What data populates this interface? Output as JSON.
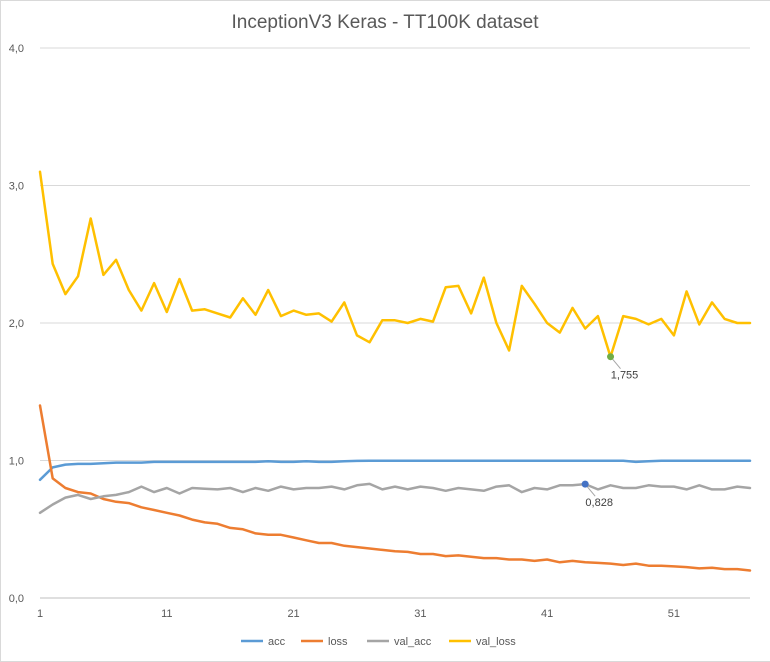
{
  "chart_data": {
    "type": "line",
    "title": "InceptionV3 Keras - TT100K dataset",
    "xlabel": "",
    "ylabel": "",
    "ylim": [
      0,
      4
    ],
    "yticks": [
      "0,0",
      "1,0",
      "2,0",
      "3,0",
      "4,0"
    ],
    "yticks_values": [
      0,
      1,
      2,
      3,
      4
    ],
    "xticks": [
      "1",
      "11",
      "21",
      "31",
      "41",
      "51"
    ],
    "xticks_values": [
      1,
      11,
      21,
      31,
      41,
      51
    ],
    "x": [
      1,
      2,
      3,
      4,
      5,
      6,
      7,
      8,
      9,
      10,
      11,
      12,
      13,
      14,
      15,
      16,
      17,
      18,
      19,
      20,
      21,
      22,
      23,
      24,
      25,
      26,
      27,
      28,
      29,
      30,
      31,
      32,
      33,
      34,
      35,
      36,
      37,
      38,
      39,
      40,
      41,
      42,
      43,
      44,
      45,
      46,
      47,
      48,
      49,
      50,
      51,
      52,
      53,
      54,
      55,
      56,
      57
    ],
    "grid": "horizontal",
    "legend": "bottom",
    "series": [
      {
        "name": "acc",
        "color": "#5b9bd5",
        "values": [
          0.86,
          0.95,
          0.97,
          0.975,
          0.975,
          0.98,
          0.985,
          0.985,
          0.985,
          0.99,
          0.99,
          0.99,
          0.99,
          0.99,
          0.99,
          0.99,
          0.99,
          0.99,
          0.995,
          0.99,
          0.99,
          0.995,
          0.99,
          0.99,
          0.995,
          0.997,
          0.998,
          0.998,
          0.998,
          0.998,
          0.998,
          0.998,
          0.998,
          0.998,
          0.998,
          0.998,
          0.998,
          0.998,
          0.998,
          0.998,
          0.998,
          0.998,
          0.998,
          0.998,
          0.998,
          0.998,
          0.998,
          0.99,
          0.995,
          0.998,
          0.998,
          0.998,
          0.998,
          0.998,
          0.998,
          0.998,
          0.998
        ]
      },
      {
        "name": "loss",
        "color": "#ed7d31",
        "values": [
          1.4,
          0.87,
          0.8,
          0.77,
          0.76,
          0.72,
          0.7,
          0.69,
          0.66,
          0.64,
          0.62,
          0.6,
          0.57,
          0.55,
          0.54,
          0.51,
          0.5,
          0.47,
          0.46,
          0.46,
          0.44,
          0.42,
          0.4,
          0.4,
          0.38,
          0.37,
          0.36,
          0.35,
          0.34,
          0.335,
          0.32,
          0.32,
          0.305,
          0.31,
          0.3,
          0.29,
          0.29,
          0.28,
          0.28,
          0.27,
          0.28,
          0.26,
          0.27,
          0.26,
          0.255,
          0.25,
          0.24,
          0.25,
          0.235,
          0.235,
          0.23,
          0.225,
          0.215,
          0.22,
          0.21,
          0.21,
          0.2
        ]
      },
      {
        "name": "val_acc",
        "color": "#a5a5a5",
        "values": [
          0.62,
          0.68,
          0.73,
          0.75,
          0.72,
          0.74,
          0.75,
          0.77,
          0.81,
          0.77,
          0.8,
          0.76,
          0.8,
          0.795,
          0.79,
          0.8,
          0.77,
          0.8,
          0.78,
          0.81,
          0.79,
          0.8,
          0.8,
          0.81,
          0.79,
          0.82,
          0.83,
          0.79,
          0.81,
          0.79,
          0.81,
          0.8,
          0.78,
          0.8,
          0.79,
          0.78,
          0.81,
          0.82,
          0.77,
          0.8,
          0.79,
          0.82,
          0.82,
          0.828,
          0.79,
          0.82,
          0.8,
          0.8,
          0.82,
          0.81,
          0.81,
          0.79,
          0.82,
          0.79,
          0.79,
          0.81,
          0.8
        ]
      },
      {
        "name": "val_loss",
        "color": "#ffc000",
        "values": [
          3.1,
          2.43,
          2.21,
          2.34,
          2.76,
          2.35,
          2.46,
          2.24,
          2.09,
          2.29,
          2.08,
          2.32,
          2.09,
          2.1,
          2.07,
          2.04,
          2.18,
          2.06,
          2.24,
          2.05,
          2.09,
          2.06,
          2.07,
          2.01,
          2.15,
          1.91,
          1.86,
          2.02,
          2.02,
          2.0,
          2.03,
          2.01,
          2.26,
          2.27,
          2.07,
          2.33,
          2.0,
          1.8,
          2.27,
          2.14,
          2.0,
          1.93,
          2.11,
          1.96,
          2.05,
          1.755,
          2.05,
          2.03,
          1.99,
          2.03,
          1.91,
          2.23,
          1.99,
          2.15,
          2.03,
          2.0,
          2.0
        ]
      }
    ],
    "annotations": [
      {
        "series": "val_loss",
        "x": 46,
        "y": 1.755,
        "label": "1,755",
        "marker_color": "#70ad47"
      },
      {
        "series": "val_acc",
        "x": 44,
        "y": 0.828,
        "label": "0,828",
        "marker_color": "#4472c4"
      }
    ]
  }
}
